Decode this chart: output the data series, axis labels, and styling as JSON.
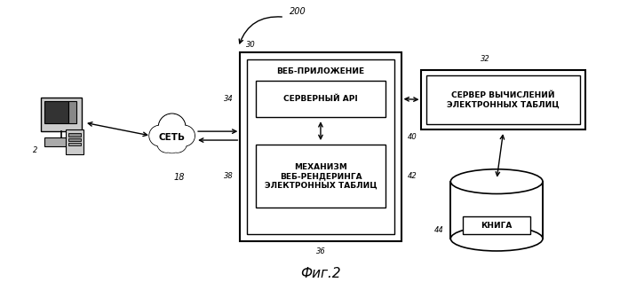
{
  "background_color": "#ffffff",
  "title_label": "Фиг.2",
  "labels": {
    "web_app": "ВЕБ-ПРИЛОЖЕНИЕ",
    "server_api": "СЕРВЕРНЫЙ API",
    "web_render": "МЕХАНИЗМ\nВЕБ-РЕНДЕРИНГА\nЭЛЕКТРОННЫХ ТАБЛИЦ",
    "calc_server": "СЕРВЕР ВЫЧИСЛЕНИЙ\nЭЛЕКТРОННЫХ ТАБЛИЦ",
    "network": "СЕТЬ",
    "book": "КНИГА"
  },
  "ref": {
    "n200": "200",
    "n2": "2",
    "n18": "18",
    "n30": "30",
    "n32": "32",
    "n34": "34",
    "n36": "36",
    "n38": "38",
    "n40": "40",
    "n42": "42",
    "n44": "44"
  },
  "fs": 6.5,
  "fs_ref": 6.0,
  "fs_title": 11
}
